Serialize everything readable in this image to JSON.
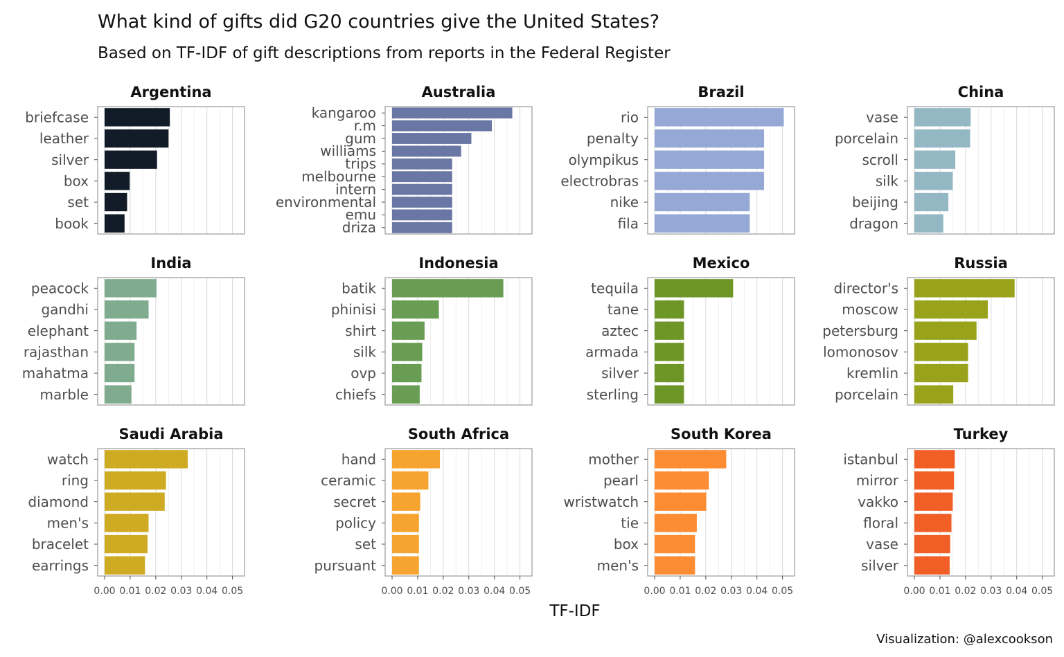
{
  "title": "What kind of gifts did G20 countries give the United States?",
  "subtitle": "Based on TF-IDF of gift descriptions from reports in the Federal Register",
  "caption": "Visualization: @alexcookson",
  "chart_data": {
    "type": "bar",
    "orientation": "horizontal",
    "facet": "small multiples, 4 columns x 3 rows",
    "xlabel": "TF-IDF",
    "xlim": [
      0,
      0.052
    ],
    "xticks": [
      "0.00",
      "0.01",
      "0.02",
      "0.03",
      "0.04",
      "0.05"
    ],
    "xtick_values": [
      0,
      0.01,
      0.02,
      0.03,
      0.04,
      0.05
    ],
    "grid": true,
    "legend": "none",
    "panels": [
      {
        "name": "Argentina",
        "color": "#111c28",
        "categories": [
          "briefcase",
          "leather",
          "silver",
          "box",
          "set",
          "book"
        ],
        "values": [
          0.0255,
          0.025,
          0.0205,
          0.0098,
          0.0088,
          0.0078
        ]
      },
      {
        "name": "Australia",
        "color": "#6a76a4",
        "categories": [
          "kangaroo",
          "r.m",
          "gum",
          "williams",
          "trips",
          "melbourne",
          "intern",
          "environmental",
          "emu",
          "driza"
        ],
        "values": [
          0.047,
          0.039,
          0.031,
          0.027,
          0.0235,
          0.0235,
          0.0235,
          0.0235,
          0.0235,
          0.0235
        ]
      },
      {
        "name": "Brazil",
        "color": "#96a8d6",
        "categories": [
          "rio",
          "penalty",
          "olympikus",
          "electrobras",
          "nike",
          "fila"
        ],
        "values": [
          0.0505,
          0.0428,
          0.0428,
          0.0428,
          0.0372,
          0.0372
        ]
      },
      {
        "name": "China",
        "color": "#94b7c4",
        "categories": [
          "vase",
          "porcelain",
          "scroll",
          "silk",
          "beijing",
          "dragon"
        ],
        "values": [
          0.022,
          0.0218,
          0.016,
          0.015,
          0.0133,
          0.0113
        ]
      },
      {
        "name": "India",
        "color": "#7fac8e",
        "categories": [
          "peacock",
          "gandhi",
          "elephant",
          "rajasthan",
          "mahatma",
          "marble"
        ],
        "values": [
          0.0203,
          0.0172,
          0.0125,
          0.0117,
          0.0117,
          0.0105
        ]
      },
      {
        "name": "Indonesia",
        "color": "#689d53",
        "categories": [
          "batik",
          "phinisi",
          "shirt",
          "silk",
          "ovp",
          "chiefs"
        ],
        "values": [
          0.0435,
          0.0183,
          0.0127,
          0.0118,
          0.0115,
          0.0108
        ]
      },
      {
        "name": "Mexico",
        "color": "#6e9626",
        "categories": [
          "tequila",
          "tane",
          "aztec",
          "armada",
          "silver",
          "sterling"
        ],
        "values": [
          0.0307,
          0.0115,
          0.0115,
          0.0115,
          0.0115,
          0.0115
        ]
      },
      {
        "name": "Russia",
        "color": "#98a21a",
        "categories": [
          "director's",
          "moscow",
          "petersburg",
          "lomonosov",
          "kremlin",
          "porcelain"
        ],
        "values": [
          0.0392,
          0.0287,
          0.0243,
          0.021,
          0.021,
          0.0152
        ]
      },
      {
        "name": "Saudi Arabia",
        "color": "#cfab23",
        "categories": [
          "watch",
          "ring",
          "diamond",
          "men's",
          "bracelet",
          "earrings"
        ],
        "values": [
          0.0325,
          0.024,
          0.0235,
          0.0172,
          0.0168,
          0.0158
        ]
      },
      {
        "name": "South Africa",
        "color": "#f6a32f",
        "categories": [
          "hand",
          "ceramic",
          "secret",
          "policy",
          "set",
          "pursuant"
        ],
        "values": [
          0.0187,
          0.0142,
          0.011,
          0.0105,
          0.0105,
          0.0105
        ]
      },
      {
        "name": "South Korea",
        "color": "#fe8c33",
        "categories": [
          "mother",
          "pearl",
          "wristwatch",
          "tie",
          "box",
          "men's"
        ],
        "values": [
          0.028,
          0.0212,
          0.0202,
          0.0165,
          0.0158,
          0.0158
        ]
      },
      {
        "name": "Turkey",
        "color": "#f15f26",
        "categories": [
          "istanbul",
          "mirror",
          "vakko",
          "floral",
          "vase",
          "silver"
        ],
        "values": [
          0.0158,
          0.0155,
          0.015,
          0.0145,
          0.014,
          0.0138
        ]
      }
    ]
  }
}
